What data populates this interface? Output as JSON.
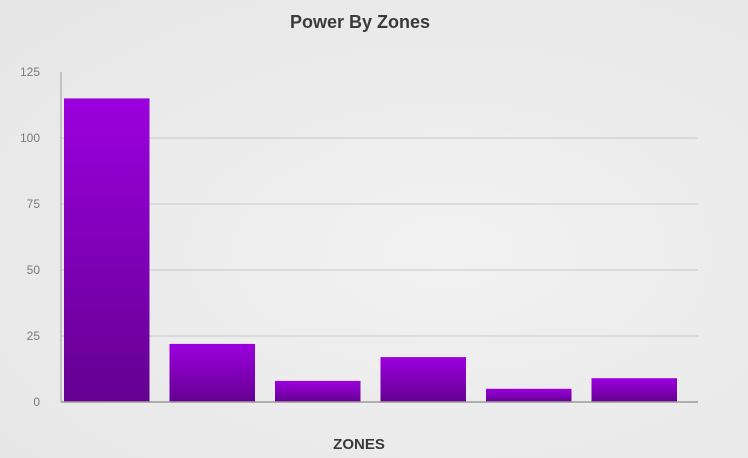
{
  "chart_data": {
    "type": "bar",
    "title": "Power By Zones",
    "xlabel": "ZONES",
    "ylabel": "",
    "categories": [
      "",
      "",
      "",
      "",
      "",
      ""
    ],
    "values": [
      115,
      22,
      8,
      17,
      5,
      9
    ],
    "ylim": [
      0,
      125
    ],
    "yticks": [
      0,
      25,
      50,
      75,
      100,
      125
    ],
    "grid": true,
    "legend": "none",
    "colors": {
      "bar_top": "#9b00de",
      "bar_bottom": "#650091",
      "grid": "#c8c8c8",
      "axis": "#9a9a9a",
      "tick_text": "#7a7a7a"
    }
  }
}
